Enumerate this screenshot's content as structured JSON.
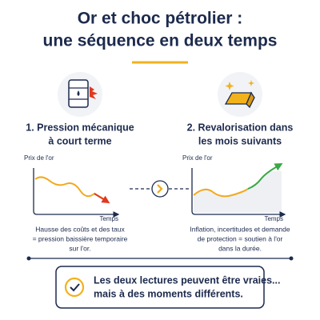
{
  "header": {
    "title": [
      "Or et choc pétrolier :",
      "une séquence en deux temps"
    ]
  },
  "panels": [
    {
      "heading": [
        "1. Pression mécanique",
        "à court terme"
      ],
      "y_label": "Prix de l'or",
      "x_label": "Temps",
      "caption": [
        "Hausse des coûts et des taux",
        "= pression baissière temporaire",
        "sur l'or."
      ]
    },
    {
      "heading": [
        "2. Revalorisation dans",
        "les mois suivants"
      ],
      "y_label": "Prix de l'or",
      "x_label": "Temps",
      "caption": [
        "Inflation, incertitudes et demande",
        "de protection = soutien à l'or",
        "dans la durée."
      ]
    }
  ],
  "conclusion": [
    "Les deux lectures peuvent être vraies...",
    "mais à des moments différents."
  ]
}
